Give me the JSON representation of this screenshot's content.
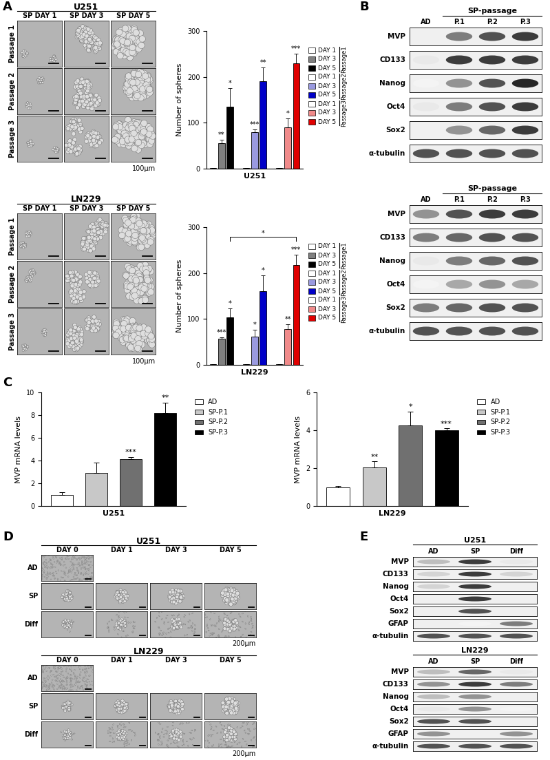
{
  "panel_labels": [
    "A",
    "B",
    "C",
    "D",
    "E"
  ],
  "chart_data": [
    {
      "type": "bar",
      "xlabel": "U251",
      "ylabel": "Number of spheres",
      "ylim": [
        0,
        300
      ],
      "yticks": [
        0,
        100,
        200,
        300
      ],
      "tick_labels": "y",
      "legend": "right",
      "categories": [
        "DAY 1",
        "DAY 3",
        "DAY 5"
      ],
      "series": [
        {
          "name": "Passage1",
          "colors": [
            "#ffffff",
            "#808080",
            "#000000"
          ],
          "values": [
            2,
            55,
            135
          ],
          "errors": [
            0,
            8,
            40
          ],
          "significance": [
            null,
            "**",
            "*"
          ]
        },
        {
          "name": "Passage2",
          "colors": [
            "#ffffff",
            "#9a9ae0",
            "#0000c8"
          ],
          "values": [
            2,
            80,
            190
          ],
          "errors": [
            0,
            5,
            30
          ],
          "significance": [
            null,
            "***",
            "**"
          ]
        },
        {
          "name": "Passage3",
          "colors": [
            "#ffffff",
            "#f08a8a",
            "#e00000"
          ],
          "values": [
            2,
            90,
            230
          ],
          "errors": [
            0,
            20,
            20
          ],
          "significance": [
            null,
            "*",
            "***"
          ]
        }
      ]
    },
    {
      "type": "bar",
      "xlabel": "LN229",
      "ylabel": "Number of spheres",
      "ylim": [
        0,
        300
      ],
      "yticks": [
        0,
        100,
        200,
        300
      ],
      "tick_labels": "y",
      "legend": "right",
      "categories": [
        "DAY 1",
        "DAY 3",
        "DAY 5"
      ],
      "series": [
        {
          "name": "Passage1",
          "colors": [
            "#ffffff",
            "#808080",
            "#000000"
          ],
          "values": [
            2,
            57,
            103
          ],
          "errors": [
            0,
            3,
            20
          ],
          "significance": [
            null,
            "***",
            "*"
          ]
        },
        {
          "name": "Passage2",
          "colors": [
            "#ffffff",
            "#9a9ae0",
            "#0000c8"
          ],
          "values": [
            2,
            62,
            160
          ],
          "errors": [
            0,
            15,
            35
          ],
          "significance": [
            null,
            "*",
            "*"
          ]
        },
        {
          "name": "Passage3",
          "colors": [
            "#ffffff",
            "#f08a8a",
            "#e00000"
          ],
          "values": [
            2,
            78,
            218
          ],
          "errors": [
            0,
            10,
            22
          ],
          "significance": [
            null,
            "**",
            "***"
          ]
        }
      ],
      "comparisons": [
        {
          "from": [
            "Passage1",
            "DAY 5"
          ],
          "to": [
            "Passage3",
            "DAY 5"
          ],
          "label": "*"
        }
      ]
    },
    {
      "type": "bar",
      "xlabel": "U251",
      "ylabel": "MVP mRNA levels",
      "ylim": [
        0,
        10
      ],
      "yticks": [
        0,
        2,
        4,
        6,
        8,
        10
      ],
      "tick_labels": "y",
      "legend": "right",
      "categories": [
        "AD",
        "SP-P.1",
        "SP-P.2",
        "SP-P.3"
      ],
      "colors": [
        "#ffffff",
        "#c8c8c8",
        "#707070",
        "#000000"
      ],
      "values": [
        1.0,
        2.9,
        4.1,
        8.2
      ],
      "errors": [
        0.2,
        0.9,
        0.2,
        0.9
      ],
      "significance": [
        null,
        null,
        "***",
        "**"
      ]
    },
    {
      "type": "bar",
      "xlabel": "LN229",
      "ylabel": "MVP mRNA levels",
      "ylim": [
        0,
        6
      ],
      "yticks": [
        0,
        2,
        4,
        6
      ],
      "tick_labels": "y",
      "legend": "right",
      "categories": [
        "AD",
        "SP-P.1",
        "SP-P.2",
        "SP-P.3"
      ],
      "colors": [
        "#ffffff",
        "#c8c8c8",
        "#707070",
        "#000000"
      ],
      "values": [
        1.0,
        2.05,
        4.25,
        4.0
      ],
      "errors": [
        0.05,
        0.3,
        0.75,
        0.1
      ],
      "significance": [
        null,
        "**",
        "*",
        "***"
      ]
    }
  ],
  "sphere_micrographs": [
    {
      "title": "U251",
      "columns": [
        "SP DAY 1",
        "SP DAY 3",
        "SP DAY 5"
      ],
      "rows": [
        "Passage 1",
        "Passage 2",
        "Passage 3"
      ],
      "scale_bar": "100μm"
    },
    {
      "title": "LN229",
      "columns": [
        "SP DAY 1",
        "SP DAY 3",
        "SP DAY 5"
      ],
      "rows": [
        "Passage 1",
        "Passage 2",
        "Passage 3"
      ],
      "scale_bar": "100μm"
    }
  ],
  "differentiation_micrographs": [
    {
      "title": "U251",
      "columns": [
        "DAY 0",
        "DAY 1",
        "DAY 3",
        "DAY 5"
      ],
      "rows": [
        "AD",
        "SP",
        "Diff"
      ],
      "scale_bar": "200μm",
      "present": [
        [
          true,
          false,
          false,
          false
        ],
        [
          true,
          true,
          true,
          true
        ],
        [
          true,
          true,
          true,
          true
        ]
      ]
    },
    {
      "title": "LN229",
      "columns": [
        "DAY 0",
        "DAY 1",
        "DAY 3",
        "DAY 5"
      ],
      "rows": [
        "AD",
        "SP",
        "Diff"
      ],
      "scale_bar": "200μm",
      "present": [
        [
          true,
          false,
          false,
          false
        ],
        [
          true,
          true,
          true,
          true
        ],
        [
          true,
          true,
          true,
          true
        ]
      ]
    }
  ],
  "passage_blots": [
    {
      "header": "SP-passage",
      "lanes": [
        "AD",
        "P.1",
        "P.2",
        "P.3"
      ],
      "rows": [
        {
          "name": "MVP",
          "intensity": [
            0.0,
            0.6,
            0.8,
            0.9
          ]
        },
        {
          "name": "CD133",
          "intensity": [
            0.1,
            0.9,
            0.9,
            0.9
          ]
        },
        {
          "name": "Nanog",
          "intensity": [
            0.05,
            0.5,
            0.8,
            1.0
          ]
        },
        {
          "name": "Oct4",
          "intensity": [
            0.1,
            0.6,
            0.8,
            0.9
          ]
        },
        {
          "name": "Sox2",
          "intensity": [
            0.0,
            0.5,
            0.7,
            0.9
          ]
        },
        {
          "name": "α-tubulin",
          "intensity": [
            0.8,
            0.8,
            0.8,
            0.8
          ]
        }
      ]
    },
    {
      "header": "SP-passage",
      "lanes": [
        "AD",
        "P.1",
        "P.2",
        "P.3"
      ],
      "rows": [
        {
          "name": "MVP",
          "intensity": [
            0.5,
            0.8,
            0.9,
            0.9
          ]
        },
        {
          "name": "CD133",
          "intensity": [
            0.6,
            0.7,
            0.8,
            0.8
          ]
        },
        {
          "name": "Nanog",
          "intensity": [
            0.1,
            0.6,
            0.7,
            0.8
          ]
        },
        {
          "name": "Oct4",
          "intensity": [
            0.05,
            0.4,
            0.5,
            0.4
          ]
        },
        {
          "name": "Sox2",
          "intensity": [
            0.6,
            0.7,
            0.8,
            0.8
          ]
        },
        {
          "name": "α-tubulin",
          "intensity": [
            0.8,
            0.8,
            0.8,
            0.8
          ]
        }
      ]
    }
  ],
  "differentiation_blots": [
    {
      "title": "U251",
      "lanes": [
        "AD",
        "SP",
        "Diff"
      ],
      "rows": [
        {
          "name": "MVP",
          "intensity": [
            0.3,
            0.9,
            0.1
          ]
        },
        {
          "name": "CD133",
          "intensity": [
            0.2,
            0.9,
            0.2
          ]
        },
        {
          "name": "Nanog",
          "intensity": [
            0.2,
            0.9,
            0.0
          ]
        },
        {
          "name": "Oct4",
          "intensity": [
            0.0,
            0.9,
            0.0
          ]
        },
        {
          "name": "Sox2",
          "intensity": [
            0.0,
            0.8,
            0.0
          ]
        },
        {
          "name": "GFAP",
          "intensity": [
            0.0,
            0.05,
            0.6
          ]
        },
        {
          "name": "α-tubulin",
          "intensity": [
            0.8,
            0.8,
            0.8
          ]
        }
      ]
    },
    {
      "title": "LN229",
      "lanes": [
        "AD",
        "SP",
        "Diff"
      ],
      "rows": [
        {
          "name": "MVP",
          "intensity": [
            0.3,
            0.7,
            0.1
          ]
        },
        {
          "name": "CD133",
          "intensity": [
            0.5,
            0.9,
            0.6
          ]
        },
        {
          "name": "Nanog",
          "intensity": [
            0.3,
            0.5,
            0.0
          ]
        },
        {
          "name": "Oct4",
          "intensity": [
            0.1,
            0.5,
            0.05
          ]
        },
        {
          "name": "Sox2",
          "intensity": [
            0.8,
            0.8,
            0.0
          ]
        },
        {
          "name": "GFAP",
          "intensity": [
            0.5,
            0.0,
            0.5
          ]
        },
        {
          "name": "α-tubulin",
          "intensity": [
            0.8,
            0.8,
            0.8
          ]
        }
      ]
    }
  ]
}
